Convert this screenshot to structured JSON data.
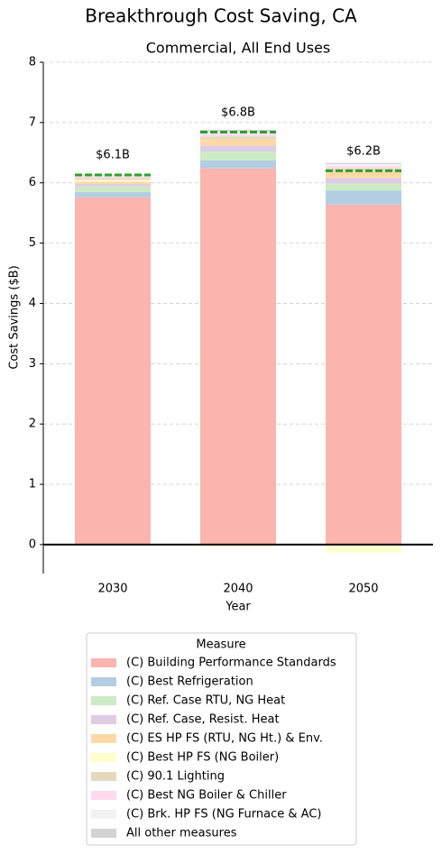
{
  "chart_data": {
    "type": "stacked_bar",
    "title": "Breakthrough Cost Saving, CA",
    "subtitle": "Commercial, All End Uses",
    "x_label": "Year",
    "y_label": "Cost Savings ($B)",
    "legend_title": "Measure",
    "categories": [
      "2030",
      "2040",
      "2050"
    ],
    "ylim": [
      -0.48,
      8
    ],
    "yticks": [
      0,
      1,
      2,
      3,
      4,
      5,
      6,
      7,
      8
    ],
    "grid": true,
    "series": [
      {
        "name": "(C) Building Performance Standards",
        "color": "#fbb4ae",
        "values": [
          5.76,
          6.24,
          5.64
        ]
      },
      {
        "name": "(C) Best Refrigeration",
        "color": "#b3cde3",
        "values": [
          0.09,
          0.13,
          0.23
        ]
      },
      {
        "name": "(C) Ref. Case RTU, NG Heat",
        "color": "#ccebc5",
        "values": [
          0.09,
          0.15,
          0.12
        ]
      },
      {
        "name": "(C) Ref. Case, Resist. Heat",
        "color": "#decbe4",
        "values": [
          0.04,
          0.1,
          0.09
        ]
      },
      {
        "name": "(C) ES HP FS (RTU, NG Ht.) & Env.",
        "color": "#fed9a6",
        "values": [
          0.04,
          0.1,
          0.12
        ]
      },
      {
        "name": "(C) Best HP FS (NG Boiler)",
        "color": "#ffffcc",
        "values": [
          0.03,
          -0.04,
          -0.13
        ]
      },
      {
        "name": "(C) 90.1 Lighting",
        "color": "#e5d8bd",
        "values": [
          0.03,
          0.05,
          0.04
        ]
      },
      {
        "name": "(C) Best NG Boiler & Chiller",
        "color": "#fddaec",
        "values": [
          0.02,
          0.04,
          0.04
        ]
      },
      {
        "name": "(C) Brk. HP FS (NG Furnace & AC)",
        "color": "#f2f2f2",
        "values": [
          0.02,
          0.04,
          0.03
        ]
      },
      {
        "name": "All other measures",
        "color": "#d3d3d3",
        "values": [
          0.01,
          0.03,
          0.02
        ]
      }
    ],
    "totals": {
      "color": "#2ca02c",
      "values": [
        6.13,
        6.84,
        6.2
      ],
      "value_labels": [
        "$6.1B",
        "$6.8B",
        "$6.2B"
      ]
    }
  }
}
